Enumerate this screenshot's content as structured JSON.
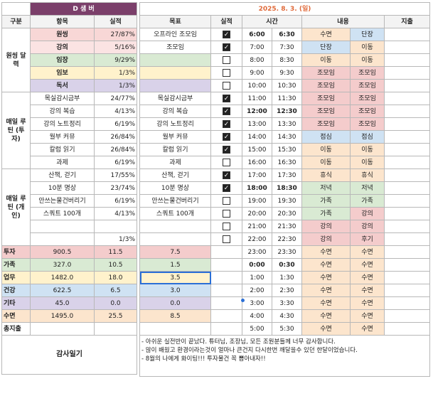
{
  "left": {
    "title": "D 샘 버",
    "headers": [
      "구분",
      "항목",
      "실적"
    ],
    "groups": [
      {
        "label": "원씽 달력",
        "items": [
          {
            "name": "원씽",
            "value": "27/87%",
            "bg": "#f8d7d6"
          },
          {
            "name": "강의",
            "value": "5/16%",
            "bg": "#fbe3e3"
          },
          {
            "name": "임장",
            "value": "9/29%",
            "bg": "#d9ead3"
          },
          {
            "name": "임보",
            "value": "1/3%",
            "bg": "#fff2cc"
          },
          {
            "name": "독서",
            "value": "1/3%",
            "bg": "#d9d2e9"
          }
        ]
      },
      {
        "label": "매일 루틴 (투자)",
        "items": [
          {
            "name": "목실감시금부",
            "value": "24/77%",
            "bg": "#ffffff"
          },
          {
            "name": "강의 복습",
            "value": "4/13%",
            "bg": "#ffffff"
          },
          {
            "name": "강의 노트정리",
            "value": "6/19%",
            "bg": "#ffffff"
          },
          {
            "name": "월부 커뮤",
            "value": "26/84%",
            "bg": "#ffffff"
          },
          {
            "name": "칼럼 읽기",
            "value": "26/84%",
            "bg": "#ffffff"
          },
          {
            "name": "과제",
            "value": "6/19%",
            "bg": "#ffffff"
          }
        ]
      },
      {
        "label": "매일 루틴 (개인)",
        "items": [
          {
            "name": "산책, 걷기",
            "value": "17/55%",
            "bg": "#ffffff"
          },
          {
            "name": "10분 명상",
            "value": "23/74%",
            "bg": "#ffffff"
          },
          {
            "name": "안쓰는물건버리기",
            "value": "6/19%",
            "bg": "#ffffff"
          },
          {
            "name": "스쿼트 100개",
            "value": "4/13%",
            "bg": "#ffffff"
          },
          {
            "name": "",
            "value": "",
            "bg": "#ffffff"
          },
          {
            "name": "",
            "value": "1/3%",
            "bg": "#ffffff"
          }
        ]
      }
    ],
    "summary": [
      {
        "label": "투자",
        "v1": "900.5",
        "v2": "11.5",
        "bg": "#f4cccc"
      },
      {
        "label": "가족",
        "v1": "327.0",
        "v2": "10.5",
        "bg": "#d9ead3"
      },
      {
        "label": "업무",
        "v1": "1482.0",
        "v2": "18.0",
        "bg": "#fff2cc"
      },
      {
        "label": "건강",
        "v1": "622.5",
        "v2": "6.5",
        "bg": "#cfe2f3"
      },
      {
        "label": "기타",
        "v1": "45.0",
        "v2": "0.0",
        "bg": "#d9d2e9"
      },
      {
        "label": "수면",
        "v1": "1495.0",
        "v2": "25.5",
        "bg": "#fce5cd"
      },
      {
        "label": "총지출",
        "v1": "",
        "v2": "",
        "bg": "#ffffff"
      }
    ],
    "gratitude_label": "감사일기"
  },
  "right": {
    "date": "2025. 8. 3. (일)",
    "headers": {
      "goal": "목표",
      "done": "실적",
      "time": "시간",
      "content": "내용",
      "expense": "지출"
    },
    "rows": [
      {
        "goal": "오프라인 조모임",
        "goal_bg": "#ffffff",
        "check": true,
        "start": "6:00",
        "end": "6:30",
        "bold": true,
        "a": "수면",
        "a_bg": "#fce5cd",
        "b": "단장",
        "b_bg": "#cfe2f3"
      },
      {
        "goal": "조모임",
        "goal_bg": "#ffffff",
        "check": true,
        "start": "7:00",
        "end": "7:30",
        "bold": false,
        "a": "단장",
        "a_bg": "#cfe2f3",
        "b": "이동",
        "b_bg": "#fce5cd"
      },
      {
        "goal": "",
        "goal_bg": "#d9ead3",
        "check": false,
        "start": "8:00",
        "end": "8:30",
        "bold": false,
        "a": "이동",
        "a_bg": "#fce5cd",
        "b": "이동",
        "b_bg": "#fce5cd"
      },
      {
        "goal": "",
        "goal_bg": "#fff2cc",
        "check": false,
        "start": "9:00",
        "end": "9:30",
        "bold": false,
        "a": "조모임",
        "a_bg": "#f4cccc",
        "b": "조모임",
        "b_bg": "#f4cccc"
      },
      {
        "goal": "",
        "goal_bg": "#d9d2e9",
        "check": false,
        "start": "10:00",
        "end": "10:30",
        "bold": false,
        "a": "조모임",
        "a_bg": "#f4cccc",
        "b": "조모임",
        "b_bg": "#f4cccc"
      },
      {
        "goal": "목실감시금부",
        "goal_bg": "#ffffff",
        "check": true,
        "start": "11:00",
        "end": "11:30",
        "bold": false,
        "a": "조모임",
        "a_bg": "#f4cccc",
        "b": "조모임",
        "b_bg": "#f4cccc"
      },
      {
        "goal": "강의 복습",
        "goal_bg": "#ffffff",
        "check": true,
        "start": "12:00",
        "end": "12:30",
        "bold": true,
        "a": "조모임",
        "a_bg": "#f4cccc",
        "b": "조모임",
        "b_bg": "#f4cccc"
      },
      {
        "goal": "강의 노트정리",
        "goal_bg": "#ffffff",
        "check": true,
        "start": "13:00",
        "end": "13:30",
        "bold": false,
        "a": "조모임",
        "a_bg": "#f4cccc",
        "b": "조모임",
        "b_bg": "#f4cccc"
      },
      {
        "goal": "월부 커뮤",
        "goal_bg": "#ffffff",
        "check": true,
        "start": "14:00",
        "end": "14:30",
        "bold": false,
        "a": "점심",
        "a_bg": "#cfe2f3",
        "b": "점심",
        "b_bg": "#cfe2f3"
      },
      {
        "goal": "칼럼 읽기",
        "goal_bg": "#ffffff",
        "check": true,
        "start": "15:00",
        "end": "15:30",
        "bold": false,
        "a": "이동",
        "a_bg": "#fce5cd",
        "b": "이동",
        "b_bg": "#fce5cd"
      },
      {
        "goal": "과제",
        "goal_bg": "#ffffff",
        "check": false,
        "start": "16:00",
        "end": "16:30",
        "bold": false,
        "a": "이동",
        "a_bg": "#fce5cd",
        "b": "이동",
        "b_bg": "#fce5cd"
      },
      {
        "goal": "산책, 걷기",
        "goal_bg": "#ffffff",
        "check": true,
        "start": "17:00",
        "end": "17:30",
        "bold": false,
        "a": "휴식",
        "a_bg": "#fce5cd",
        "b": "휴식",
        "b_bg": "#fce5cd"
      },
      {
        "goal": "10분 명상",
        "goal_bg": "#ffffff",
        "check": true,
        "start": "18:00",
        "end": "18:30",
        "bold": true,
        "a": "저녁",
        "a_bg": "#d9ead3",
        "b": "저녁",
        "b_bg": "#d9ead3"
      },
      {
        "goal": "안쓰는물건버리기",
        "goal_bg": "#ffffff",
        "check": false,
        "start": "19:00",
        "end": "19:30",
        "bold": false,
        "a": "가족",
        "a_bg": "#d9ead3",
        "b": "가족",
        "b_bg": "#d9ead3"
      },
      {
        "goal": "스쿼트 100개",
        "goal_bg": "#ffffff",
        "check": false,
        "start": "20:00",
        "end": "20:30",
        "bold": false,
        "a": "가족",
        "a_bg": "#d9ead3",
        "b": "강의",
        "b_bg": "#f4cccc"
      },
      {
        "goal": "",
        "goal_bg": "#ffffff",
        "check": false,
        "start": "21:00",
        "end": "21:30",
        "bold": false,
        "a": "강의",
        "a_bg": "#f4cccc",
        "b": "강의",
        "b_bg": "#f4cccc"
      },
      {
        "goal": "",
        "goal_bg": "#ffffff",
        "check": false,
        "start": "22:00",
        "end": "22:30",
        "bold": false,
        "a": "강의",
        "a_bg": "#f4cccc",
        "b": "후기",
        "b_bg": "#f4cccc"
      },
      {
        "goal": "7.5",
        "goal_bg": "#f4cccc",
        "check": null,
        "start": "23:00",
        "end": "23:30",
        "bold": false,
        "a": "수면",
        "a_bg": "#fce5cd",
        "b": "수면",
        "b_bg": "#fce5cd"
      },
      {
        "goal": "1.5",
        "goal_bg": "#d9ead3",
        "check": null,
        "start": "0:00",
        "end": "0:30",
        "bold": true,
        "a": "수면",
        "a_bg": "#fce5cd",
        "b": "수면",
        "b_bg": "#fce5cd"
      },
      {
        "goal": "3.5",
        "goal_bg": "#fff2cc",
        "check": null,
        "start": "1:00",
        "end": "1:30",
        "bold": false,
        "a": "수면",
        "a_bg": "#fce5cd",
        "b": "수면",
        "b_bg": "#fce5cd"
      },
      {
        "goal": "3.0",
        "goal_bg": "#cfe2f3",
        "check": null,
        "start": "2:00",
        "end": "2:30",
        "bold": false,
        "a": "수면",
        "a_bg": "#fce5cd",
        "b": "수면",
        "b_bg": "#fce5cd"
      },
      {
        "goal": "0.0",
        "goal_bg": "#d9d2e9",
        "check": null,
        "start": "3:00",
        "end": "3:30",
        "bold": false,
        "a": "수면",
        "a_bg": "#fce5cd",
        "b": "수면",
        "b_bg": "#fce5cd"
      },
      {
        "goal": "8.5",
        "goal_bg": "#fce5cd",
        "check": null,
        "start": "4:00",
        "end": "4:30",
        "bold": false,
        "a": "수면",
        "a_bg": "#fce5cd",
        "b": "수면",
        "b_bg": "#fce5cd"
      },
      {
        "goal": "",
        "goal_bg": "#ffffff",
        "check": null,
        "start": "5:00",
        "end": "5:30",
        "bold": false,
        "a": "수면",
        "a_bg": "#fce5cd",
        "b": "수면",
        "b_bg": "#fce5cd"
      }
    ],
    "memo": [
      "- 아쉬운 실전반이 끝났다. 튜터님, 조장님, 모든 조원분들께 너무 감사합니다.",
      "- 많이 배웠고 환경이라는것이 얼마나 큰건지 다시한번 깨달을수 있던 한달이었습니다.",
      "- 8월의 나에게 화이팅!!! 투자물건 꼭 뽑아내자!!"
    ]
  }
}
